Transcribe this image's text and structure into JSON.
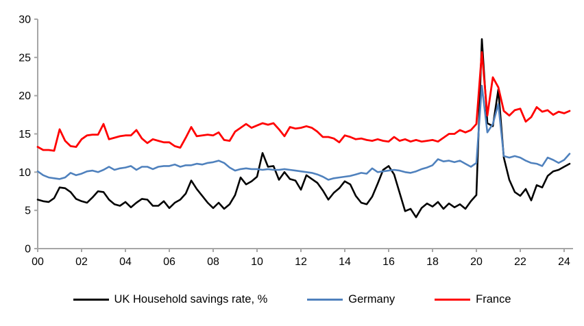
{
  "chart_data": {
    "type": "line",
    "title": "",
    "xlabel": "",
    "ylabel": "",
    "x_start_year": 2000,
    "x_step_years": 0.25,
    "x_tick_interval_years": 2,
    "x_tick_labels": [
      "00",
      "02",
      "04",
      "06",
      "08",
      "10",
      "12",
      "14",
      "16",
      "18",
      "20",
      "22",
      "24"
    ],
    "ylim": [
      0,
      30
    ],
    "y_ticks": [
      "0",
      "5",
      "10",
      "15",
      "20",
      "25",
      "30"
    ],
    "grid": false,
    "legend_position": "bottom",
    "axis_color": "#a6a6a6",
    "series": [
      {
        "name": "UK Household savings rate, %",
        "color": "#000000",
        "stroke_width": 2.6,
        "values": [
          6.4,
          6.2,
          6.1,
          6.6,
          8.0,
          7.9,
          7.4,
          6.5,
          6.2,
          6.0,
          6.7,
          7.5,
          7.4,
          6.4,
          5.8,
          5.6,
          6.1,
          5.4,
          6.0,
          6.5,
          6.4,
          5.6,
          5.6,
          6.2,
          5.3,
          6.0,
          6.4,
          7.2,
          8.9,
          7.8,
          6.9,
          6.0,
          5.3,
          6.0,
          5.2,
          5.8,
          7.0,
          9.3,
          8.4,
          8.8,
          9.4,
          12.5,
          10.7,
          10.8,
          9.0,
          10.0,
          9.1,
          8.9,
          7.7,
          9.6,
          9.1,
          8.6,
          7.6,
          6.4,
          7.3,
          7.9,
          8.8,
          8.4,
          6.9,
          6.0,
          5.8,
          6.8,
          8.5,
          10.3,
          10.8,
          9.7,
          7.3,
          4.9,
          5.2,
          4.1,
          5.3,
          5.9,
          5.5,
          6.1,
          5.2,
          5.9,
          5.4,
          5.8,
          5.2,
          6.2,
          7.0,
          27.4,
          16.4,
          16.0,
          20.8,
          11.9,
          9.0,
          7.4,
          6.9,
          7.8,
          6.3,
          8.3,
          8.0,
          9.5,
          10.1,
          10.3,
          10.7,
          11.1
        ]
      },
      {
        "name": "Germany",
        "color": "#4f81bd",
        "stroke_width": 2.6,
        "values": [
          10.1,
          9.6,
          9.3,
          9.2,
          9.1,
          9.3,
          9.9,
          9.6,
          9.8,
          10.1,
          10.2,
          10.0,
          10.3,
          10.7,
          10.3,
          10.5,
          10.6,
          10.8,
          10.3,
          10.7,
          10.7,
          10.4,
          10.7,
          10.8,
          10.8,
          11.0,
          10.7,
          10.9,
          10.9,
          11.1,
          11.0,
          11.2,
          11.3,
          11.5,
          11.2,
          10.6,
          10.2,
          10.4,
          10.5,
          10.4,
          10.4,
          10.3,
          10.4,
          10.3,
          10.3,
          10.4,
          10.3,
          10.2,
          10.1,
          10.0,
          9.9,
          9.7,
          9.4,
          9.0,
          9.2,
          9.3,
          9.4,
          9.5,
          9.7,
          9.9,
          9.8,
          10.5,
          10.0,
          10.1,
          10.2,
          10.3,
          10.2,
          10.0,
          9.9,
          10.1,
          10.4,
          10.6,
          10.9,
          11.7,
          11.4,
          11.5,
          11.3,
          11.5,
          11.1,
          10.7,
          11.2,
          21.3,
          15.2,
          16.3,
          18.9,
          12.1,
          11.9,
          12.1,
          11.9,
          11.5,
          11.2,
          11.1,
          10.8,
          11.9,
          11.6,
          11.2,
          11.6,
          12.4
        ]
      },
      {
        "name": "France",
        "color": "#ff0000",
        "stroke_width": 2.8,
        "values": [
          13.3,
          12.9,
          12.9,
          12.8,
          15.6,
          14.1,
          13.4,
          13.3,
          14.3,
          14.8,
          14.9,
          14.9,
          16.3,
          14.3,
          14.5,
          14.7,
          14.8,
          14.8,
          15.5,
          14.4,
          13.8,
          14.3,
          14.1,
          13.9,
          13.9,
          13.4,
          13.2,
          14.5,
          15.9,
          14.7,
          14.8,
          14.9,
          14.8,
          15.2,
          14.2,
          14.1,
          15.3,
          15.8,
          16.3,
          15.8,
          16.1,
          16.4,
          16.2,
          16.4,
          15.6,
          14.7,
          15.9,
          15.7,
          15.8,
          16.0,
          15.8,
          15.3,
          14.6,
          14.6,
          14.4,
          13.9,
          14.8,
          14.6,
          14.3,
          14.4,
          14.2,
          14.1,
          14.3,
          14.1,
          14.0,
          14.6,
          14.1,
          14.3,
          14.0,
          14.2,
          14.0,
          14.1,
          14.2,
          14.0,
          14.5,
          15.0,
          15.0,
          15.5,
          15.2,
          15.5,
          16.3,
          25.7,
          17.4,
          22.4,
          21.1,
          18.0,
          17.4,
          18.1,
          18.3,
          16.6,
          17.2,
          18.5,
          17.9,
          18.1,
          17.5,
          17.9,
          17.7,
          18.0
        ]
      }
    ]
  },
  "legend": {
    "uk_label": "UK Household savings rate, %",
    "germany_label": "Germany",
    "france_label": "France"
  }
}
